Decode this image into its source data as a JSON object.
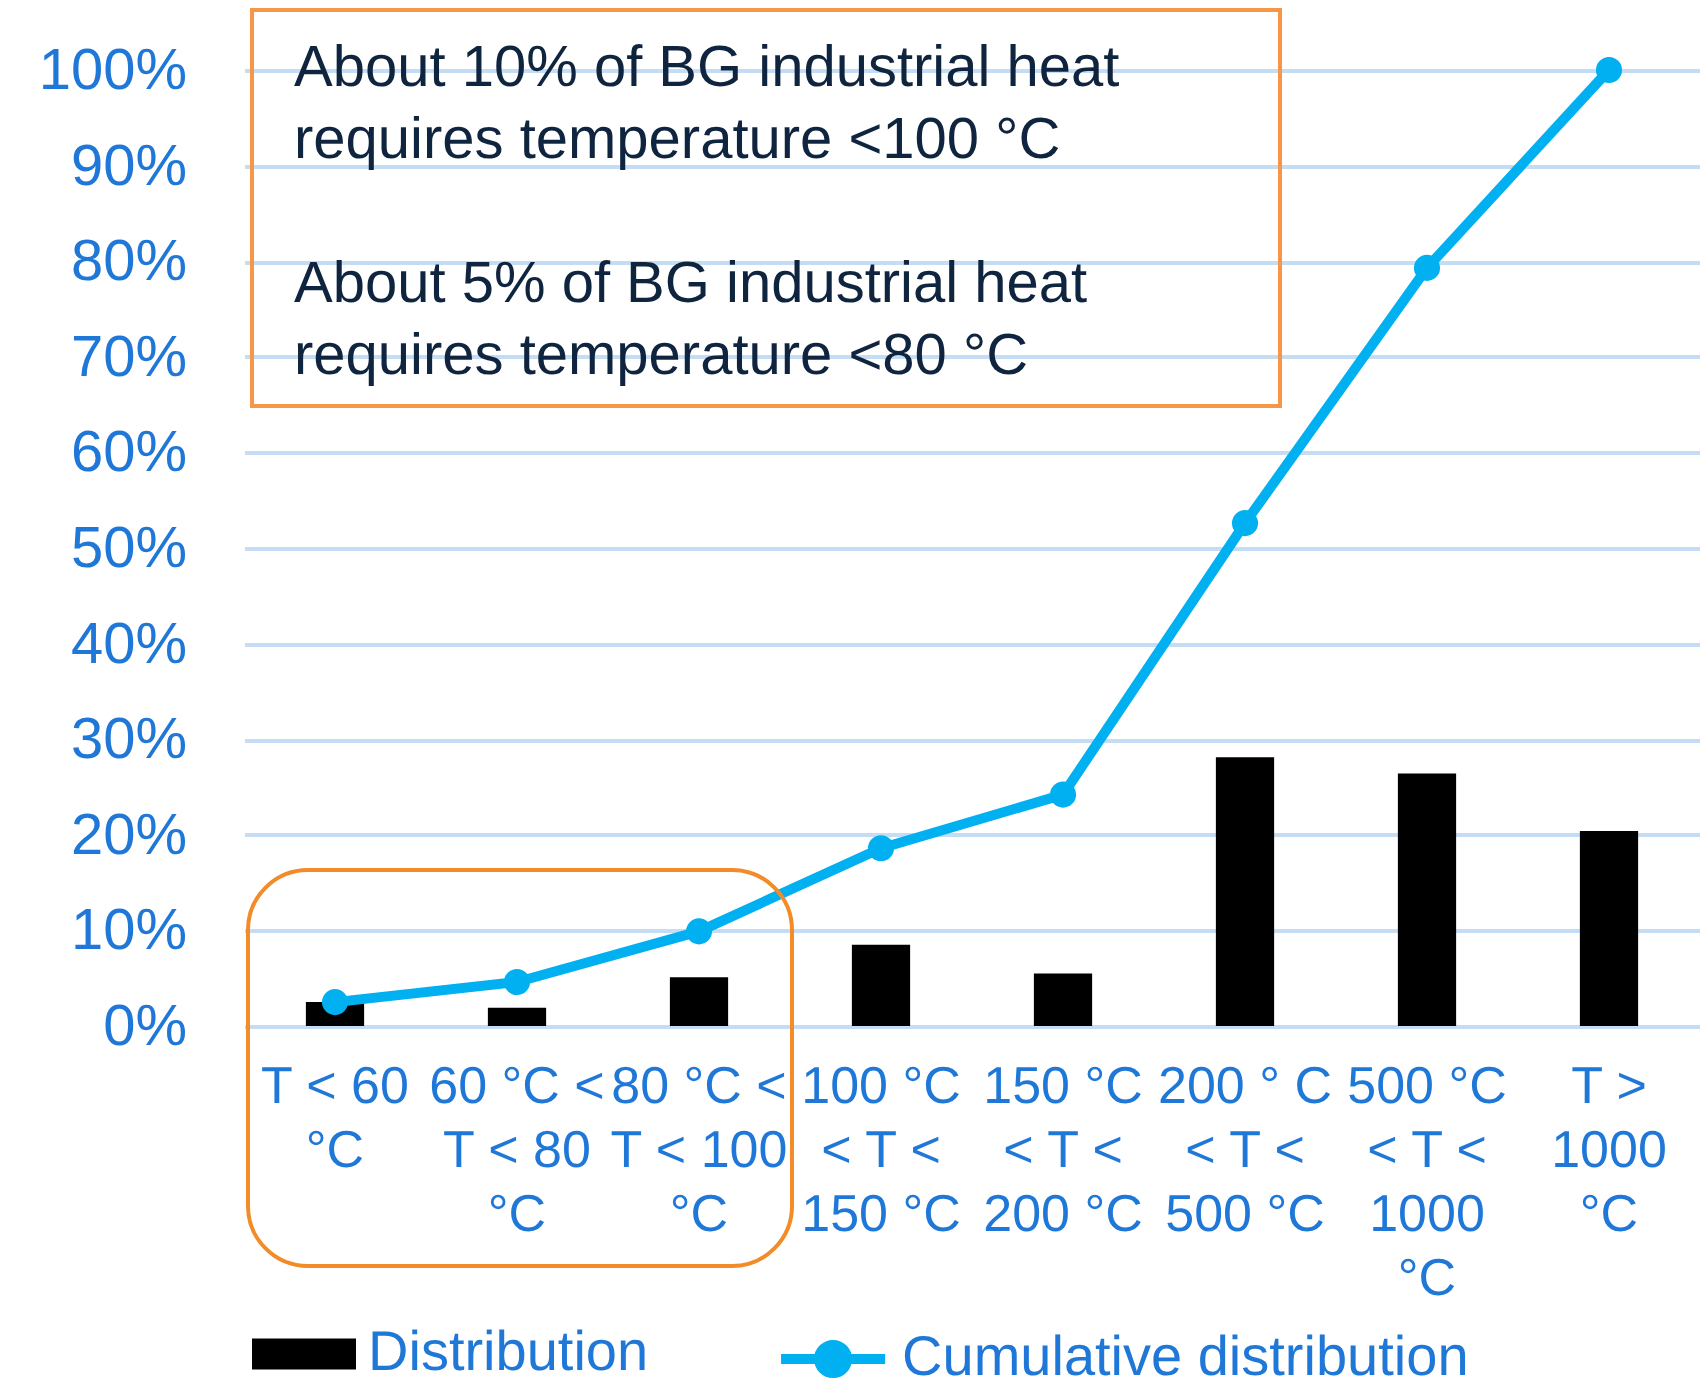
{
  "chart_data": {
    "type": "bar",
    "categories": [
      "T < 60 °C",
      "60 °C < T < 80 °C",
      "80 °C < T < 100 °C",
      "100 °C < T < 150 °C",
      "150 °C < T < 200 °C",
      "200 ° C < T < 500 °C",
      "500 °C < T < 1000 °C",
      "T > 1000 °C"
    ],
    "series": [
      {
        "name": "Distribution",
        "color": "#000000",
        "values": [
          2.5,
          1.9,
          5.1,
          8.5,
          5.5,
          28.1,
          26.4,
          20.4
        ]
      },
      {
        "name": "Cumulative distribution",
        "type": "line",
        "color": "#00b0f0",
        "values": [
          2.5,
          4.6,
          9.9,
          18.6,
          24.2,
          52.6,
          79.3,
          100
        ]
      }
    ],
    "ylim": [
      0,
      100
    ],
    "yticks": [
      {
        "value": 0,
        "label": "0%"
      },
      {
        "value": 10,
        "label": "10%"
      },
      {
        "value": 20,
        "label": "20%"
      },
      {
        "value": 30,
        "label": "30%"
      },
      {
        "value": 40,
        "label": "40%"
      },
      {
        "value": 50,
        "label": "50%"
      },
      {
        "value": 60,
        "label": "60%"
      },
      {
        "value": 70,
        "label": "70%"
      },
      {
        "value": 80,
        "label": "80%"
      },
      {
        "value": 90,
        "label": "90%"
      },
      {
        "value": 100,
        "label": "100%"
      }
    ],
    "grid": "y",
    "legend": "bottom",
    "marker": "circle",
    "line_style": "solid",
    "annotations": [
      "About 10% of BG industrial heat requires temperature <100 °C",
      "About 5% of BG industrial heat requires temperature <80 °C"
    ]
  }
}
